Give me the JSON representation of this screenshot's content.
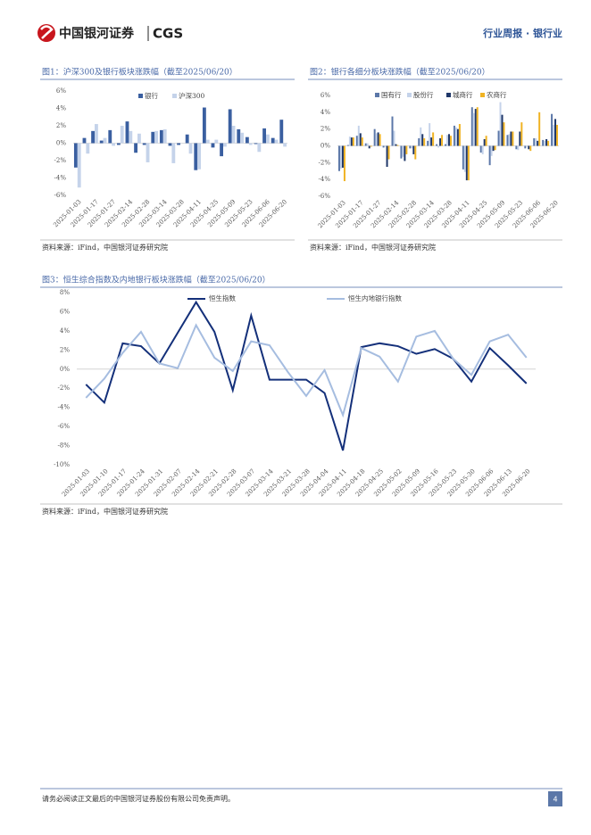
{
  "header": {
    "logo_cn": "中国银河证券",
    "logo_en": "CGS",
    "right": "行业周报 · 银行业"
  },
  "chart_data": [
    {
      "type": "bar",
      "title": "图1：沪深300及银行板块涨跌幅（截至2025/06/20）",
      "source": "资料来源：iFind，中国银河证券研究院",
      "categories": [
        "2025-01-03",
        null,
        "2025-01-17",
        null,
        "2025-01-27",
        null,
        "2025-02-14",
        null,
        "2025-02-28",
        null,
        "2025-03-14",
        null,
        "2025-03-28",
        null,
        "2025-04-11",
        null,
        "2025-04-25",
        null,
        "2025-05-09",
        null,
        "2025-05-23",
        null,
        "2025-06-06",
        null,
        "2025-06-20"
      ],
      "series": [
        {
          "name": "银行",
          "color": "#3a5fa0",
          "values": [
            -2.8,
            0.6,
            1.4,
            0.3,
            1.5,
            -0.2,
            2.5,
            -1.1,
            -0.2,
            1.3,
            1.5,
            -0.3,
            -0.2,
            1.0,
            -3.1,
            4.1,
            -0.5,
            -1.5,
            3.9,
            1.6,
            0.7,
            -0.1,
            1.7,
            0.6,
            2.7
          ]
        },
        {
          "name": "沪深300",
          "color": "#c5d3ea",
          "values": [
            -5.1,
            -1.2,
            2.2,
            0.6,
            -0.3,
            2.0,
            1.4,
            1.1,
            -2.2,
            1.4,
            1.6,
            -2.3,
            0.0,
            -1.2,
            -3.0,
            0.4,
            0.4,
            -0.4,
            2.0,
            1.2,
            -0.2,
            -1.0,
            1.0,
            0.4,
            -0.4
          ]
        }
      ],
      "ylim": [
        -6,
        6
      ],
      "yticks": [
        {
          "value": -6,
          "label": "-6%"
        },
        {
          "value": -4,
          "label": "-4%"
        },
        {
          "value": -2,
          "label": "-2%"
        },
        {
          "value": 0,
          "label": "0%"
        },
        {
          "value": 2,
          "label": "2%"
        },
        {
          "value": 4,
          "label": "4%"
        },
        {
          "value": 6,
          "label": "6%"
        }
      ],
      "legend": "top"
    },
    {
      "type": "bar",
      "title": "图2：银行各细分板块涨跌幅（截至2025/06/20）",
      "source": "资料来源：iFind，中国银河证券研究院",
      "categories": [
        "2025-01-03",
        null,
        "2025-01-17",
        null,
        "2025-01-27",
        null,
        "2025-02-14",
        null,
        "2025-02-28",
        null,
        "2025-03-14",
        null,
        "2025-03-28",
        null,
        "2025-04-11",
        null,
        "2025-04-25",
        null,
        "2025-05-09",
        null,
        "2025-05-23",
        null,
        "2025-06-06",
        null,
        "2025-06-20"
      ],
      "series": [
        {
          "name": "国有行",
          "color": "#5b77a8",
          "values": [
            -3.0,
            0.1,
            1.2,
            0.3,
            2.0,
            -0.2,
            3.5,
            -1.5,
            -0.3,
            0.9,
            0.6,
            0.2,
            0.2,
            2.4,
            -2.8,
            4.6,
            -0.8,
            -2.3,
            1.8,
            1.3,
            -0.4,
            -0.3,
            0.9,
            0.7,
            3.8
          ]
        },
        {
          "name": "股份行",
          "color": "#c5d3ea",
          "values": [
            -2.7,
            1.1,
            2.4,
            0.3,
            1.5,
            -0.1,
            1.8,
            -1.3,
            -0.3,
            2.2,
            2.7,
            -0.2,
            1.3,
            2.2,
            -3.1,
            3.9,
            -1.0,
            -1.2,
            5.2,
            1.4,
            -0.5,
            -0.1,
            0.9,
            0.6,
            2.5
          ]
        },
        {
          "name": "城商行",
          "color": "#1f3769",
          "values": [
            -2.6,
            1.0,
            1.5,
            -0.3,
            1.6,
            -2.5,
            0.2,
            -1.8,
            -1.0,
            1.4,
            1.0,
            0.9,
            1.4,
            2.0,
            -4.1,
            4.4,
            0.8,
            -0.6,
            3.7,
            1.7,
            1.7,
            -0.4,
            0.6,
            0.8,
            3.2
          ]
        },
        {
          "name": "农商行",
          "color": "#f0b323",
          "values": [
            -4.2,
            1.0,
            1.0,
            -0.1,
            1.4,
            -1.6,
            0.1,
            -1.0,
            -1.6,
            0.9,
            1.6,
            1.3,
            1.2,
            2.6,
            -4.1,
            4.6,
            1.2,
            -0.5,
            2.8,
            1.7,
            2.8,
            -0.6,
            4.0,
            0.6,
            2.5
          ]
        }
      ],
      "ylim": [
        -6,
        6
      ],
      "yticks": [
        {
          "value": -6,
          "label": "-6%"
        },
        {
          "value": -4,
          "label": "-4%"
        },
        {
          "value": -2,
          "label": "-2%"
        },
        {
          "value": 0,
          "label": "0%"
        },
        {
          "value": 2,
          "label": "2%"
        },
        {
          "value": 4,
          "label": "4%"
        },
        {
          "value": 6,
          "label": "6%"
        }
      ],
      "legend": "top"
    },
    {
      "type": "line",
      "title": "图3：恒生综合指数及内地银行板块涨跌幅（截至2025/06/20）",
      "source": "资料来源：iFind，中国银河证券研究院",
      "categories": [
        "2025-01-03",
        "2025-01-10",
        "2025-01-17",
        "2025-01-24",
        "2025-01-31",
        "2025-02-07",
        "2025-02-14",
        "2025-02-21",
        "2025-02-28",
        "2025-03-07",
        "2025-03-14",
        "2025-03-21",
        "2025-03-28",
        "2025-04-04",
        "2025-04-11",
        "2025-04-18",
        "2025-04-25",
        "2025-05-02",
        "2025-05-09",
        "2025-05-16",
        "2025-05-23",
        "2025-05-30",
        "2025-06-06",
        "2025-06-13",
        "2025-06-20"
      ],
      "series": [
        {
          "name": "恒生指数",
          "color": "#14307a",
          "values": [
            -1.6,
            -3.5,
            2.7,
            2.4,
            0.6,
            3.8,
            7.0,
            3.9,
            -2.2,
            5.6,
            -1.1,
            -1.1,
            -1.1,
            -2.5,
            -8.5,
            2.3,
            2.7,
            2.4,
            1.6,
            2.1,
            1.1,
            -1.3,
            2.2,
            0.4,
            -1.5
          ]
        },
        {
          "name": "恒生内地银行指数",
          "color": "#a6bde0",
          "values": [
            -3.0,
            -1.0,
            1.7,
            3.9,
            0.6,
            0.1,
            4.6,
            1.2,
            -0.2,
            2.9,
            2.5,
            -0.3,
            -2.8,
            -0.1,
            -4.8,
            2.2,
            1.3,
            -1.3,
            3.4,
            4.0,
            1.1,
            -0.6,
            2.9,
            3.6,
            1.2
          ]
        }
      ],
      "ylim": [
        -10,
        8
      ],
      "yticks": [
        {
          "value": -10,
          "label": "-10%"
        },
        {
          "value": -8,
          "label": "-8%"
        },
        {
          "value": -6,
          "label": "-6%"
        },
        {
          "value": -4,
          "label": "-4%"
        },
        {
          "value": -2,
          "label": "-2%"
        },
        {
          "value": 0,
          "label": "0%"
        },
        {
          "value": 2,
          "label": "2%"
        },
        {
          "value": 4,
          "label": "4%"
        },
        {
          "value": 6,
          "label": "6%"
        },
        {
          "value": 8,
          "label": "8%"
        }
      ],
      "legend": "top"
    }
  ],
  "footer": {
    "disclaimer": "请务必阅读正文最后的中国银河证券股份有限公司免责声明。",
    "page": "4"
  }
}
